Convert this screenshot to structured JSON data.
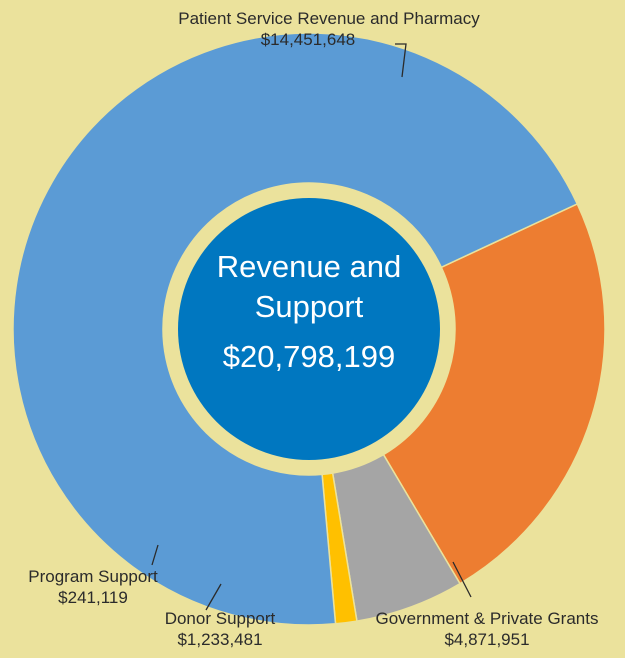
{
  "chart_data": {
    "type": "pie",
    "center_label": {
      "title_line1": "Revenue and",
      "title_line2": "Support",
      "total": "$20,798,199"
    },
    "slices": [
      {
        "name": "Patient Service Revenue and Pharmacy",
        "value": 14451648,
        "value_label": "$14,451,648",
        "color": "#5b9bd5"
      },
      {
        "name": "Government & Private Grants",
        "value": 4871951,
        "value_label": "$4,871,951",
        "color": "#ed7d31"
      },
      {
        "name": "Donor Support",
        "value": 1233481,
        "value_label": "$1,233,481",
        "color": "#a5a5a5"
      },
      {
        "name": "Program Support",
        "value": 241119,
        "value_label": "$241,119",
        "color": "#ffc000"
      }
    ],
    "colors": {
      "background": "#ebe29c",
      "center_fill": "#0077c0"
    }
  }
}
